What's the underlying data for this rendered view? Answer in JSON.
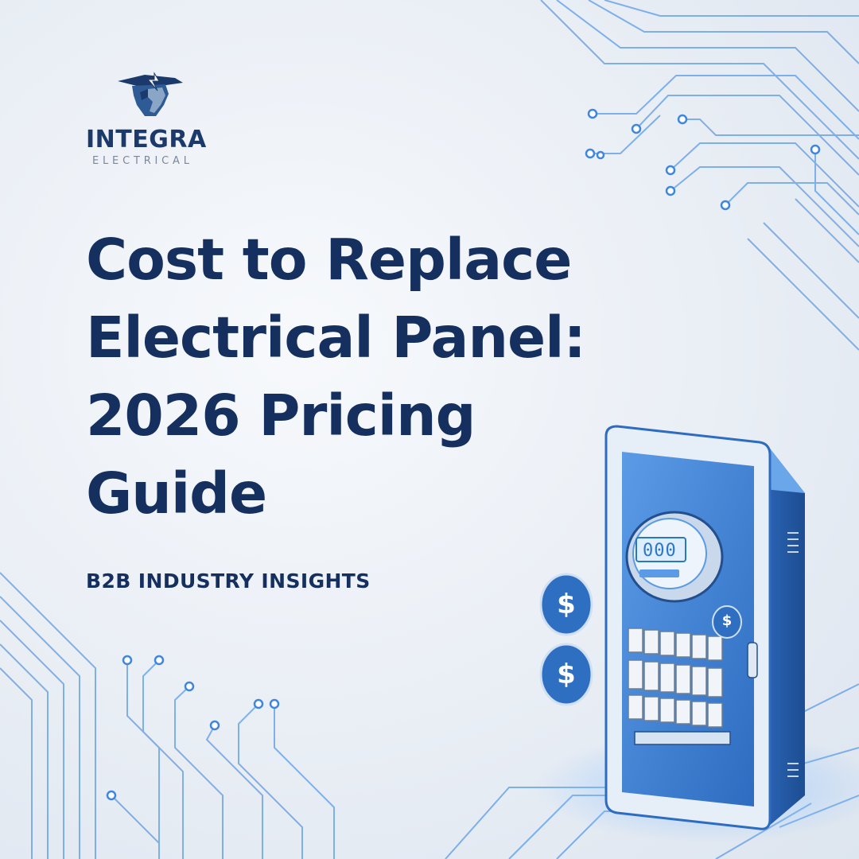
{
  "brand": {
    "name": "INTEGRA",
    "tagline": "ELECTRICAL"
  },
  "headline": {
    "lines": [
      "Cost to Replace",
      "Electrical Panel:",
      "2026 Pricing",
      "Guide"
    ]
  },
  "subhead": "B2B INDUSTRY INSIGHTS",
  "illustration": {
    "meter_readout": "000",
    "coin_symbol": "$"
  },
  "colors": {
    "headline": "#15305f",
    "brand_navy": "#1b3a6b",
    "circuit_blue": "#4a8fe0",
    "panel_blue": "#3d7fd0"
  }
}
